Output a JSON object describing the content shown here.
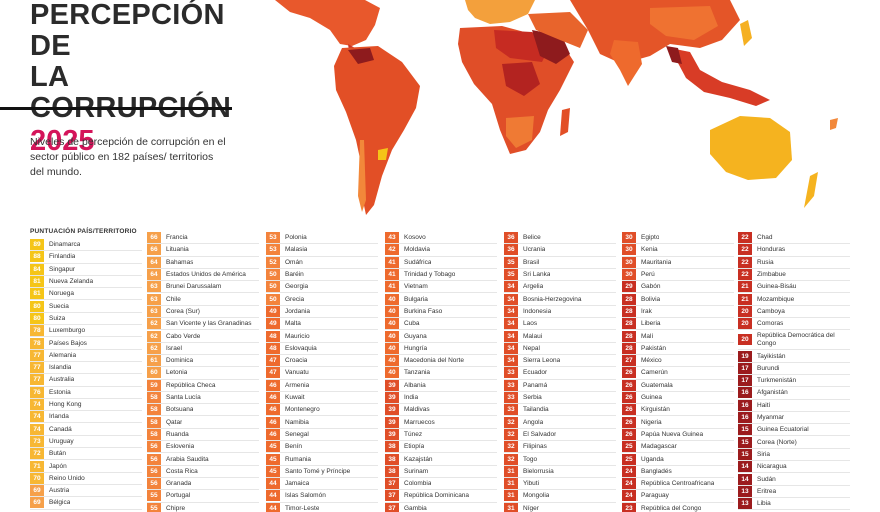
{
  "title": {
    "line1": "PERCEPCIÓN DE",
    "line2": "LA CORRUPCIÓN",
    "year": "2025"
  },
  "subtitle": "Niveles de percepción de corrupción en el sector público en 182 países/ territorios del mundo.",
  "table_header": "PUNTUACIÓN PAÍS/TERRITORIO",
  "columns": [
    [
      {
        "score": "89",
        "name": "Dinamarca"
      },
      {
        "score": "88",
        "name": "Finlandia"
      },
      {
        "score": "84",
        "name": "Singapur"
      },
      {
        "score": "81",
        "name": "Nueva Zelanda"
      },
      {
        "score": "81",
        "name": "Noruega"
      },
      {
        "score": "80",
        "name": "Suecia"
      },
      {
        "score": "80",
        "name": "Suiza"
      },
      {
        "score": "78",
        "name": "Luxemburgo"
      },
      {
        "score": "78",
        "name": "Países Bajos"
      },
      {
        "score": "77",
        "name": "Alemania"
      },
      {
        "score": "77",
        "name": "Islandia"
      },
      {
        "score": "77",
        "name": "Australia"
      },
      {
        "score": "76",
        "name": "Estonia"
      },
      {
        "score": "74",
        "name": "Hong Kong"
      },
      {
        "score": "74",
        "name": "Irlanda"
      },
      {
        "score": "74",
        "name": "Canadá"
      },
      {
        "score": "73",
        "name": "Uruguay"
      },
      {
        "score": "72",
        "name": "Bután"
      },
      {
        "score": "71",
        "name": "Japón"
      },
      {
        "score": "70",
        "name": "Reino Unido"
      },
      {
        "score": "69",
        "name": "Austria"
      },
      {
        "score": "69",
        "name": "Bélgica"
      }
    ],
    [
      {
        "score": "66",
        "name": "Francia"
      },
      {
        "score": "66",
        "name": "Lituania"
      },
      {
        "score": "64",
        "name": "Bahamas"
      },
      {
        "score": "64",
        "name": "Estados Unidos de América"
      },
      {
        "score": "63",
        "name": "Brunei Darussalam"
      },
      {
        "score": "63",
        "name": "Chile"
      },
      {
        "score": "63",
        "name": "Corea (Sur)"
      },
      {
        "score": "62",
        "name": "San Vicente y las Granadinas"
      },
      {
        "score": "62",
        "name": "Cabo Verde"
      },
      {
        "score": "62",
        "name": "Israel"
      },
      {
        "score": "61",
        "name": "Dominica"
      },
      {
        "score": "60",
        "name": "Letonia"
      },
      {
        "score": "59",
        "name": "República Checa"
      },
      {
        "score": "58",
        "name": "Santa Lucía"
      },
      {
        "score": "58",
        "name": "Botsuana"
      },
      {
        "score": "58",
        "name": "Qatar"
      },
      {
        "score": "58",
        "name": "Ruanda"
      },
      {
        "score": "56",
        "name": "Eslovenia"
      },
      {
        "score": "56",
        "name": "Arabia Saudita"
      },
      {
        "score": "56",
        "name": "Costa Rica"
      },
      {
        "score": "56",
        "name": "Granada"
      },
      {
        "score": "55",
        "name": "Portugal"
      },
      {
        "score": "55",
        "name": "Chipre"
      }
    ],
    [
      {
        "score": "53",
        "name": "Polonia"
      },
      {
        "score": "53",
        "name": "Malasia"
      },
      {
        "score": "52",
        "name": "Omán"
      },
      {
        "score": "50",
        "name": "Baréin"
      },
      {
        "score": "50",
        "name": "Georgia"
      },
      {
        "score": "50",
        "name": "Grecia"
      },
      {
        "score": "49",
        "name": "Jordania"
      },
      {
        "score": "49",
        "name": "Malta"
      },
      {
        "score": "48",
        "name": "Mauricio"
      },
      {
        "score": "48",
        "name": "Eslovaquia"
      },
      {
        "score": "47",
        "name": "Croacia"
      },
      {
        "score": "47",
        "name": "Vanuatu"
      },
      {
        "score": "46",
        "name": "Armenia"
      },
      {
        "score": "46",
        "name": "Kuwait"
      },
      {
        "score": "46",
        "name": "Montenegro"
      },
      {
        "score": "46",
        "name": "Namibia"
      },
      {
        "score": "46",
        "name": "Senegal"
      },
      {
        "score": "45",
        "name": "Benín"
      },
      {
        "score": "45",
        "name": "Rumania"
      },
      {
        "score": "45",
        "name": "Santo Tomé y Príncipe"
      },
      {
        "score": "44",
        "name": "Jamaica"
      },
      {
        "score": "44",
        "name": "Islas Salomón"
      },
      {
        "score": "44",
        "name": "Timor-Leste"
      }
    ],
    [
      {
        "score": "43",
        "name": "Kosovo"
      },
      {
        "score": "42",
        "name": "Moldavia"
      },
      {
        "score": "41",
        "name": "Sudáfrica"
      },
      {
        "score": "41",
        "name": "Trinidad y Tobago"
      },
      {
        "score": "41",
        "name": "Vietnam"
      },
      {
        "score": "40",
        "name": "Bulgaria"
      },
      {
        "score": "40",
        "name": "Burkina Faso"
      },
      {
        "score": "40",
        "name": "Cuba"
      },
      {
        "score": "40",
        "name": "Guyana"
      },
      {
        "score": "40",
        "name": "Hungría"
      },
      {
        "score": "40",
        "name": "Macedonia del Norte"
      },
      {
        "score": "40",
        "name": "Tanzania"
      },
      {
        "score": "39",
        "name": "Albania"
      },
      {
        "score": "39",
        "name": "India"
      },
      {
        "score": "39",
        "name": "Maldivas"
      },
      {
        "score": "39",
        "name": "Marruecos"
      },
      {
        "score": "39",
        "name": "Túnez"
      },
      {
        "score": "38",
        "name": "Etiopía"
      },
      {
        "score": "38",
        "name": "Kazajstán"
      },
      {
        "score": "38",
        "name": "Surinam"
      },
      {
        "score": "37",
        "name": "Colombia"
      },
      {
        "score": "37",
        "name": "República Dominicana"
      },
      {
        "score": "37",
        "name": "Gambia"
      }
    ],
    [
      {
        "score": "36",
        "name": "Belice"
      },
      {
        "score": "36",
        "name": "Ucrania"
      },
      {
        "score": "35",
        "name": "Brasil"
      },
      {
        "score": "35",
        "name": "Sri Lanka"
      },
      {
        "score": "34",
        "name": "Argelia"
      },
      {
        "score": "34",
        "name": "Bosnia-Herzegovina"
      },
      {
        "score": "34",
        "name": "Indonesia"
      },
      {
        "score": "34",
        "name": "Laos"
      },
      {
        "score": "34",
        "name": "Malaui"
      },
      {
        "score": "34",
        "name": "Nepal"
      },
      {
        "score": "34",
        "name": "Sierra Leona"
      },
      {
        "score": "33",
        "name": "Ecuador"
      },
      {
        "score": "33",
        "name": "Panamá"
      },
      {
        "score": "33",
        "name": "Serbia"
      },
      {
        "score": "33",
        "name": "Tailandia"
      },
      {
        "score": "32",
        "name": "Angola"
      },
      {
        "score": "32",
        "name": "El Salvador"
      },
      {
        "score": "32",
        "name": "Filipinas"
      },
      {
        "score": "32",
        "name": "Togo"
      },
      {
        "score": "31",
        "name": "Bielorrusia"
      },
      {
        "score": "31",
        "name": "Yibuti"
      },
      {
        "score": "31",
        "name": "Mongolia"
      },
      {
        "score": "31",
        "name": "Níger"
      }
    ],
    [
      {
        "score": "30",
        "name": "Egipto"
      },
      {
        "score": "30",
        "name": "Kenia"
      },
      {
        "score": "30",
        "name": "Mauritania"
      },
      {
        "score": "30",
        "name": "Perú"
      },
      {
        "score": "29",
        "name": "Gabón"
      },
      {
        "score": "28",
        "name": "Bolivia"
      },
      {
        "score": "28",
        "name": "Irak"
      },
      {
        "score": "28",
        "name": "Liberia"
      },
      {
        "score": "28",
        "name": "Malí"
      },
      {
        "score": "28",
        "name": "Pakistán"
      },
      {
        "score": "27",
        "name": "México"
      },
      {
        "score": "26",
        "name": "Camerún"
      },
      {
        "score": "26",
        "name": "Guatemala"
      },
      {
        "score": "26",
        "name": "Guinea"
      },
      {
        "score": "26",
        "name": "Kirguistán"
      },
      {
        "score": "26",
        "name": "Nigeria"
      },
      {
        "score": "26",
        "name": "Papúa Nueva Guinea"
      },
      {
        "score": "25",
        "name": "Madagascar"
      },
      {
        "score": "25",
        "name": "Uganda"
      },
      {
        "score": "24",
        "name": "Bangladés"
      },
      {
        "score": "24",
        "name": "República Centroafricana"
      },
      {
        "score": "24",
        "name": "Paraguay"
      },
      {
        "score": "23",
        "name": "República del Congo"
      }
    ],
    [
      {
        "score": "22",
        "name": "Chad"
      },
      {
        "score": "22",
        "name": "Honduras"
      },
      {
        "score": "22",
        "name": "Rusia"
      },
      {
        "score": "22",
        "name": "Zimbabue"
      },
      {
        "score": "21",
        "name": "Guinea-Bisáu"
      },
      {
        "score": "21",
        "name": "Mozambique"
      },
      {
        "score": "20",
        "name": "Camboya"
      },
      {
        "score": "20",
        "name": "Comoras"
      },
      {
        "score": "20",
        "name": "República Democrática del Congo",
        "tall": true
      },
      {
        "score": "19",
        "name": "Tayikistán"
      },
      {
        "score": "17",
        "name": "Burundi"
      },
      {
        "score": "17",
        "name": "Turkmenistán"
      },
      {
        "score": "16",
        "name": "Afganistán"
      },
      {
        "score": "16",
        "name": "Haití"
      },
      {
        "score": "16",
        "name": "Myanmar"
      },
      {
        "score": "15",
        "name": "Guinea Ecuatorial"
      },
      {
        "score": "15",
        "name": "Corea (Norte)"
      },
      {
        "score": "15",
        "name": "Siria"
      },
      {
        "score": "14",
        "name": "Nicaragua"
      },
      {
        "score": "14",
        "name": "Sudán"
      },
      {
        "score": "13",
        "name": "Eritrea"
      },
      {
        "score": "13",
        "name": "Libia"
      }
    ]
  ],
  "colors": {
    "title_accent": "#d4145a",
    "band_80_plus": "#f5c518",
    "band_70_79": "#f7b733",
    "band_60_69": "#f6a04a",
    "band_50_59": "#f3833c",
    "band_40_49": "#ee6a2d",
    "band_30_39": "#e04e28",
    "band_20_29": "#c82f22",
    "band_10_19": "#9b1b1d"
  }
}
